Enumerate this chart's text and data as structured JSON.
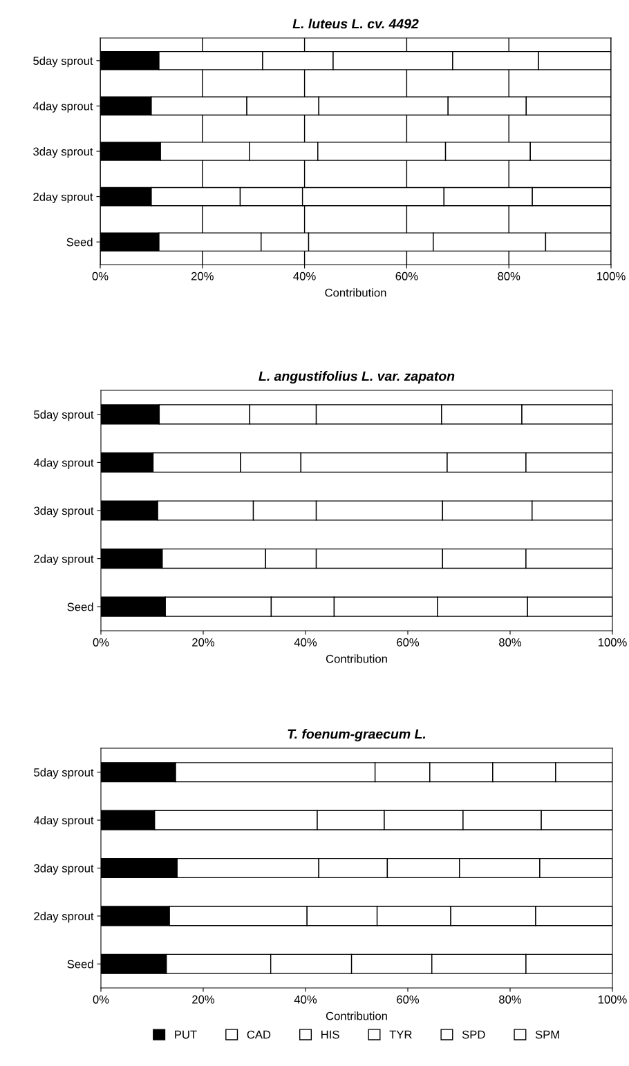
{
  "chart_data": [
    {
      "type": "bar",
      "orientation": "horizontal",
      "stacked": true,
      "title": "L. luteus L. cv. 4492",
      "xlabel": "Contribution",
      "categories": [
        "5day sprout",
        "4day sprout",
        "3day sprout",
        "2day sprout",
        "Seed"
      ],
      "xlim": [
        0,
        100
      ],
      "xticks": [
        {
          "value": 0,
          "label": "0%"
        },
        {
          "value": 20,
          "label": "20%"
        },
        {
          "value": 40,
          "label": "40%"
        },
        {
          "value": 60,
          "label": "60%"
        },
        {
          "value": 80,
          "label": "80%"
        },
        {
          "value": 100,
          "label": "100%"
        }
      ],
      "grid": "x",
      "legend": "bottom",
      "series": [
        {
          "name": "PUT",
          "color": "#000000",
          "values": [
            11.5,
            10.0,
            11.8,
            10.0,
            11.5
          ]
        },
        {
          "name": "CAD",
          "color": "#ffffff",
          "values": [
            20.3,
            18.7,
            17.4,
            17.4,
            20.0
          ]
        },
        {
          "name": "HIS",
          "color": "#ffffff",
          "values": [
            13.8,
            14.1,
            13.4,
            12.2,
            9.3
          ]
        },
        {
          "name": "TYR",
          "color": "#ffffff",
          "values": [
            23.4,
            25.3,
            25.0,
            27.7,
            24.4
          ]
        },
        {
          "name": "SPD",
          "color": "#ffffff",
          "values": [
            16.8,
            15.3,
            16.6,
            17.3,
            22.0
          ]
        },
        {
          "name": "SPM",
          "color": "#ffffff",
          "values": [
            14.2,
            16.6,
            15.8,
            15.4,
            12.8
          ]
        }
      ]
    },
    {
      "type": "bar",
      "orientation": "horizontal",
      "stacked": true,
      "title": "L. angustifolius L. var. zapaton",
      "xlabel": "Contribution",
      "categories": [
        "5day sprout",
        "4day sprout",
        "3day sprout",
        "2day sprout",
        "Seed"
      ],
      "xlim": [
        0,
        100
      ],
      "xticks": [
        {
          "value": 0,
          "label": "0%"
        },
        {
          "value": 20,
          "label": "20%"
        },
        {
          "value": 40,
          "label": "40%"
        },
        {
          "value": 60,
          "label": "60%"
        },
        {
          "value": 80,
          "label": "80%"
        },
        {
          "value": 100,
          "label": "100%"
        }
      ],
      "legend": "bottom",
      "series": [
        {
          "name": "PUT",
          "color": "#000000",
          "values": [
            11.4,
            10.2,
            11.1,
            12.0,
            12.6
          ]
        },
        {
          "name": "CAD",
          "color": "#ffffff",
          "values": [
            17.7,
            17.1,
            18.7,
            20.2,
            20.7
          ]
        },
        {
          "name": "HIS",
          "color": "#ffffff",
          "values": [
            13.0,
            11.8,
            12.3,
            9.9,
            12.3
          ]
        },
        {
          "name": "TYR",
          "color": "#ffffff",
          "values": [
            24.5,
            28.6,
            24.7,
            24.7,
            20.2
          ]
        },
        {
          "name": "SPD",
          "color": "#ffffff",
          "values": [
            15.7,
            15.4,
            17.5,
            16.3,
            17.6
          ]
        },
        {
          "name": "SPM",
          "color": "#ffffff",
          "values": [
            17.7,
            16.9,
            15.7,
            16.9,
            16.6
          ]
        }
      ]
    },
    {
      "type": "bar",
      "orientation": "horizontal",
      "stacked": true,
      "title": "T. foenum-graecum L.",
      "xlabel": "Contribution",
      "categories": [
        "5day sprout",
        "4day sprout",
        "3day sprout",
        "2day sprout",
        "Seed"
      ],
      "xlim": [
        0,
        100
      ],
      "xticks": [
        {
          "value": 0,
          "label": "0%"
        },
        {
          "value": 20,
          "label": "20%"
        },
        {
          "value": 40,
          "label": "40%"
        },
        {
          "value": 60,
          "label": "60%"
        },
        {
          "value": 80,
          "label": "80%"
        },
        {
          "value": 100,
          "label": "100%"
        }
      ],
      "legend": "bottom",
      "series": [
        {
          "name": "PUT",
          "color": "#000000",
          "values": [
            14.6,
            10.5,
            14.9,
            13.4,
            12.8
          ]
        },
        {
          "name": "CAD",
          "color": "#ffffff",
          "values": [
            39.0,
            31.8,
            27.7,
            26.9,
            20.4
          ]
        },
        {
          "name": "HIS",
          "color": "#ffffff",
          "values": [
            10.7,
            13.1,
            13.4,
            13.7,
            15.8
          ]
        },
        {
          "name": "TYR",
          "color": "#ffffff",
          "values": [
            12.3,
            15.4,
            14.1,
            14.4,
            15.7
          ]
        },
        {
          "name": "SPD",
          "color": "#ffffff",
          "values": [
            12.3,
            15.3,
            15.7,
            16.6,
            18.4
          ]
        },
        {
          "name": "SPM",
          "color": "#ffffff",
          "values": [
            11.1,
            13.9,
            14.2,
            15.0,
            16.9
          ]
        }
      ]
    }
  ]
}
